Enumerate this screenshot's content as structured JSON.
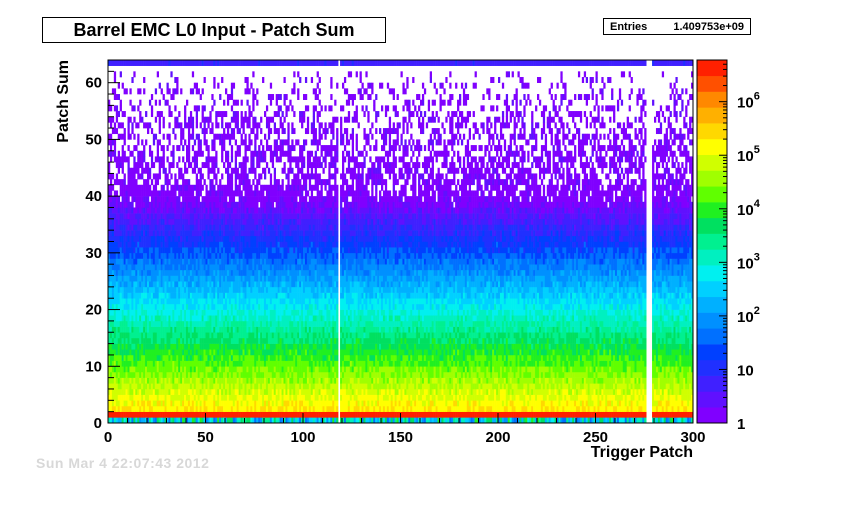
{
  "title": "Barrel EMC L0 Input - Patch Sum",
  "stats": {
    "label": "Entries",
    "value": "1.409753e+09"
  },
  "footer": "Sun Mar  4 22:07:43 2012",
  "chart_data": {
    "type": "heatmap",
    "title": "Barrel EMC L0 Input - Patch Sum",
    "xlabel": "Trigger Patch",
    "ylabel": "Patch Sum",
    "xlim": [
      0,
      300
    ],
    "ylim": [
      0,
      64
    ],
    "x_ticks": [
      0,
      50,
      100,
      150,
      200,
      250,
      300
    ],
    "y_ticks": [
      0,
      10,
      20,
      30,
      40,
      50,
      60
    ],
    "z_scale": "log",
    "zlim": [
      1,
      6000000
    ],
    "z_ticks": [
      {
        "value": 1,
        "label": "1"
      },
      {
        "value": 10,
        "label": "10"
      },
      {
        "value": 100,
        "label": "10",
        "exp": "2"
      },
      {
        "value": 1000,
        "label": "10",
        "exp": "3"
      },
      {
        "value": 10000,
        "label": "10",
        "exp": "4"
      },
      {
        "value": 100000,
        "label": "10",
        "exp": "5"
      },
      {
        "value": 1000000,
        "label": "10",
        "exp": "6"
      }
    ],
    "empty_columns": [
      118,
      276,
      277,
      278
    ],
    "saturation_row": 63,
    "peak_row": 1,
    "palette": [
      "#8000ff",
      "#6010ff",
      "#4020ff",
      "#2030ff",
      "#0040ff",
      "#0070ff",
      "#0090ff",
      "#00b0ff",
      "#00d0ff",
      "#00f0f0",
      "#00f0c0",
      "#00f090",
      "#00e060",
      "#20f020",
      "#60ff00",
      "#a0ff00",
      "#d0ff00",
      "#ffff00",
      "#ffd800",
      "#ffb000",
      "#ff8800",
      "#ff5000",
      "#ff2000"
    ]
  }
}
